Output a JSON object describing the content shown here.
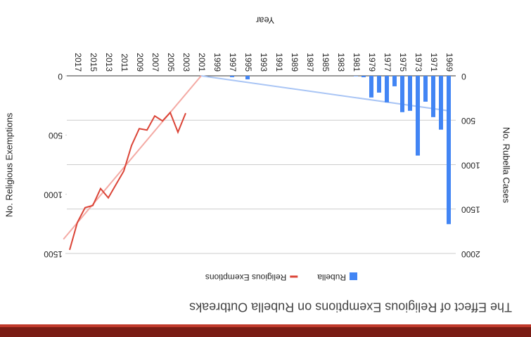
{
  "chart_data": {
    "type": "bar_line",
    "title": "The Effect of Religious Exemptions on Rubella Outbreaks",
    "x_label": "Year",
    "y_label": "No. Rubella Cases",
    "y2_label": "No. Religious Exemptions",
    "categories": [
      "1969",
      null,
      "1971",
      null,
      "1973",
      null,
      "1975",
      null,
      "1977",
      null,
      "1979",
      null,
      "1981",
      null,
      "1983",
      null,
      "1985",
      null,
      "1987",
      null,
      "1989",
      null,
      "1991",
      null,
      "1993",
      null,
      "1995",
      null,
      "1997",
      null,
      "1999",
      null,
      "2001",
      null,
      "2003",
      null,
      "2005",
      null,
      "2007",
      null,
      "2009",
      null,
      "2011",
      null,
      "2013",
      null,
      "2015",
      null,
      "2017",
      null
    ],
    "series": [
      {
        "name": "Rubella",
        "type": "bar",
        "color": "#4285f4",
        "values": [
          1670,
          606,
          465,
          291,
          898,
          394,
          409,
          118,
          299,
          189,
          244,
          16,
          5,
          0,
          0,
          0,
          0,
          0,
          0,
          0,
          0,
          0,
          0,
          0,
          0,
          0,
          40,
          0,
          15,
          0,
          0,
          0,
          0,
          0,
          0,
          0,
          0,
          0,
          0,
          0,
          0,
          0,
          0,
          0,
          0,
          0,
          0,
          0,
          0,
          0
        ],
        "trendline": {
          "x": [
            1969,
            2001
          ],
          "values": [
            394,
            0
          ],
          "color": "#a9c5f5"
        }
      },
      {
        "name": "Religious Exemptions",
        "type": "line",
        "axis": "y2",
        "color": "#db4437",
        "values": [
          null,
          null,
          null,
          null,
          null,
          null,
          null,
          null,
          null,
          null,
          null,
          null,
          null,
          null,
          null,
          null,
          null,
          null,
          null,
          null,
          null,
          null,
          null,
          null,
          null,
          null,
          null,
          null,
          null,
          null,
          null,
          null,
          null,
          null,
          315,
          476,
          310,
          381,
          339,
          458,
          446,
          589,
          804,
          917,
          1030,
          952,
          1095,
          1113,
          1238,
          1470
        ],
        "trendline": {
          "x": [
            2001,
            2018.8
          ],
          "values": [
            0,
            1380
          ],
          "color": "#f4aaa4"
        }
      }
    ],
    "ylim": [
      0,
      2000
    ],
    "yticks": [
      0,
      500,
      1000,
      1500,
      2000
    ],
    "y2lim": [
      0,
      1500
    ],
    "y2ticks": [
      0,
      500,
      1000,
      1500
    ],
    "grid": true,
    "legend": "top"
  }
}
